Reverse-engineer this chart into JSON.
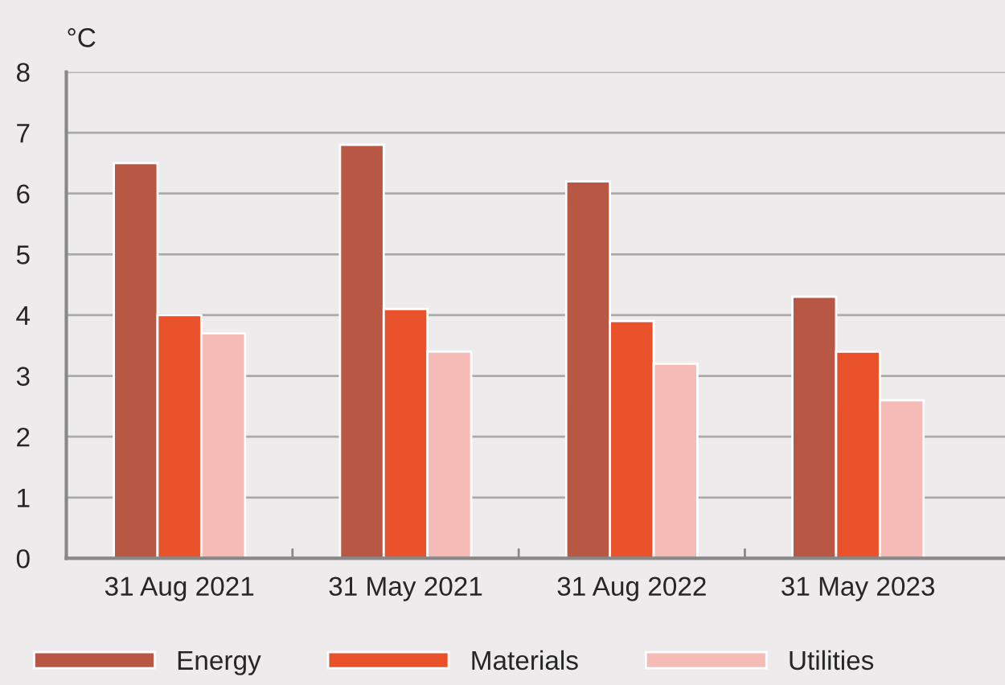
{
  "chart_data": {
    "type": "bar",
    "ylabel": "°C",
    "categories": [
      "31 Aug 2021",
      "31 May 2021",
      "31 Aug 2022",
      "31 May 2023"
    ],
    "series": [
      {
        "name": "Energy",
        "color": "#b85743",
        "values": [
          6.5,
          6.8,
          6.2,
          4.3
        ]
      },
      {
        "name": "Materials",
        "color": "#e8512a",
        "values": [
          4.0,
          4.1,
          3.9,
          3.4
        ]
      },
      {
        "name": "Utilities",
        "color": "#f6bbb7",
        "values": [
          3.7,
          3.4,
          3.2,
          2.6
        ]
      }
    ],
    "ylim": [
      0,
      8
    ],
    "yticks": [
      0,
      1,
      2,
      3,
      4,
      5,
      6,
      7,
      8
    ],
    "grid": "y",
    "legend": "bottom"
  }
}
